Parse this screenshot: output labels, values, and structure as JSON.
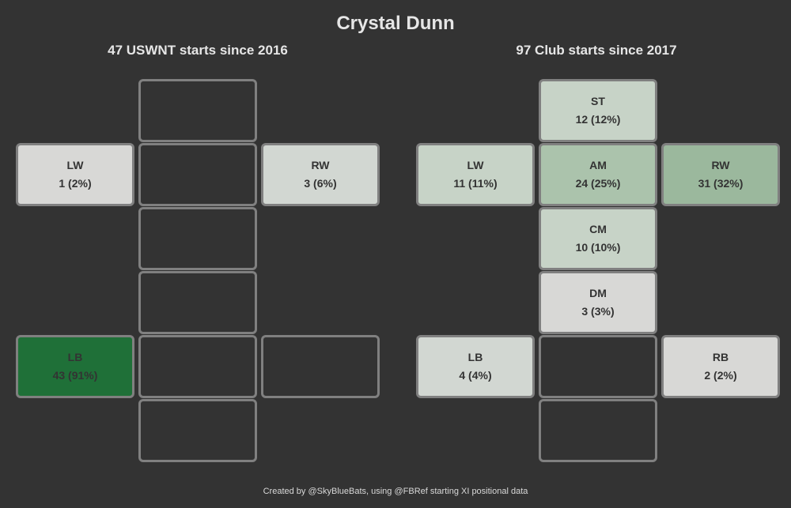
{
  "title": "Crystal Dunn",
  "footer": "Created by @SkyBlueBats, using @FBRef starting XI positional data",
  "panels": [
    {
      "subtitle": "47 USWNT starts since 2016",
      "cells": [
        {
          "id": "ST",
          "label": "",
          "value": "",
          "share": 0,
          "fill": null
        },
        {
          "id": "LW",
          "label": "LW",
          "value": "1 (2%)",
          "share": 0.02,
          "fill": "#d8d8d6"
        },
        {
          "id": "AM",
          "label": "",
          "value": "",
          "share": 0,
          "fill": null
        },
        {
          "id": "RW",
          "label": "RW",
          "value": "3 (6%)",
          "share": 0.06,
          "fill": "#d2d7d2"
        },
        {
          "id": "CM",
          "label": "",
          "value": "",
          "share": 0,
          "fill": null
        },
        {
          "id": "DM",
          "label": "",
          "value": "",
          "share": 0,
          "fill": null
        },
        {
          "id": "LB",
          "label": "LB",
          "value": "43 (91%)",
          "share": 0.91,
          "fill": "#1f7038"
        },
        {
          "id": "CB",
          "label": "",
          "value": "",
          "share": 0,
          "fill": null
        },
        {
          "id": "RB",
          "label": "",
          "value": "",
          "share": 0,
          "fill": null
        },
        {
          "id": "GK",
          "label": "",
          "value": "",
          "share": 0,
          "fill": null
        }
      ]
    },
    {
      "subtitle": "97 Club starts since 2017",
      "cells": [
        {
          "id": "ST",
          "label": "ST",
          "value": "12 (12%)",
          "share": 0.12,
          "fill": "#c7d3c7"
        },
        {
          "id": "LW",
          "label": "LW",
          "value": "11 (11%)",
          "share": 0.11,
          "fill": "#c7d3c7"
        },
        {
          "id": "AM",
          "label": "AM",
          "value": "24 (25%)",
          "share": 0.25,
          "fill": "#abc3ac"
        },
        {
          "id": "RW",
          "label": "RW",
          "value": "31 (32%)",
          "share": 0.32,
          "fill": "#9bb89d"
        },
        {
          "id": "CM",
          "label": "CM",
          "value": "10 (10%)",
          "share": 0.1,
          "fill": "#c7d3c7"
        },
        {
          "id": "DM",
          "label": "DM",
          "value": "3 (3%)",
          "share": 0.03,
          "fill": "#d8d8d6"
        },
        {
          "id": "LB",
          "label": "LB",
          "value": "4 (4%)",
          "share": 0.04,
          "fill": "#d2d7d2"
        },
        {
          "id": "CB",
          "label": "",
          "value": "",
          "share": 0,
          "fill": null
        },
        {
          "id": "RB",
          "label": "RB",
          "value": "2 (2%)",
          "share": 0.02,
          "fill": "#d8d8d6"
        },
        {
          "id": "GK",
          "label": "",
          "value": "",
          "share": 0,
          "fill": null
        }
      ]
    }
  ]
}
